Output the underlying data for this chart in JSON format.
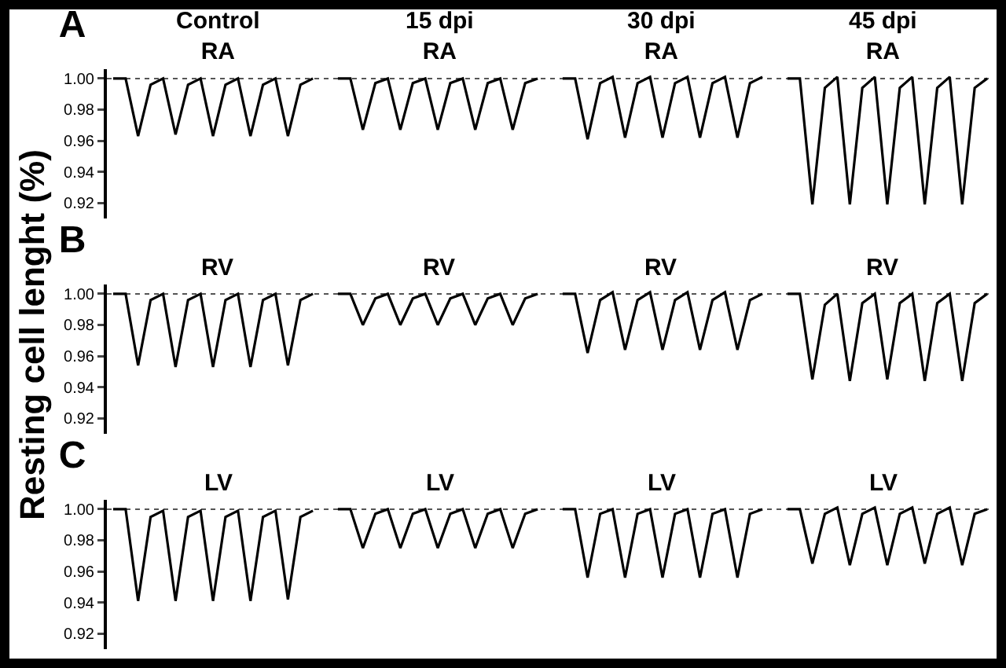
{
  "chart_data": [
    {
      "type": "line",
      "title": "A",
      "annotations": [
        "Control\nRA",
        "15 dpi\nRA",
        "30 dpi\nRA",
        "45 dpi\nRA"
      ],
      "categories": [
        null,
        null,
        null,
        null,
        null,
        null,
        null,
        null,
        null,
        null,
        null,
        null,
        null,
        null,
        null,
        null,
        null,
        null,
        null,
        null,
        null,
        null,
        null,
        null,
        null,
        null,
        null,
        null,
        null,
        null,
        null,
        null,
        null,
        null,
        null,
        null,
        null,
        null,
        null,
        null,
        null,
        null,
        null,
        null,
        null,
        null,
        null,
        null,
        null,
        null,
        null,
        null,
        null,
        null,
        null,
        null,
        null,
        null,
        null,
        null,
        null,
        null,
        null,
        null,
        null,
        null,
        null,
        null,
        null,
        null,
        null
      ],
      "series": [
        {
          "color": "#000000",
          "values": [
            1.0,
            1.0,
            0.963,
            0.996,
            1.0,
            0.964,
            0.996,
            1.0,
            0.963,
            0.996,
            1.0,
            0.963,
            0.996,
            1.0,
            0.963,
            0.996,
            1.0,
            null,
            1.0,
            1.0,
            0.967,
            0.997,
            1.0,
            0.967,
            0.997,
            1.0,
            0.967,
            0.997,
            1.0,
            0.967,
            0.997,
            1.0,
            0.967,
            0.997,
            1.0,
            null,
            1.0,
            1.0,
            0.961,
            0.997,
            1.001,
            0.962,
            0.997,
            1.001,
            0.962,
            0.997,
            1.001,
            0.962,
            0.997,
            1.001,
            0.962,
            0.997,
            1.001,
            null,
            1.0,
            1.0,
            0.919,
            0.994,
            1.001,
            0.919,
            0.994,
            1.001,
            0.919,
            0.994,
            1.001,
            0.919,
            0.994,
            1.001,
            0.919,
            0.994,
            1.0
          ]
        }
      ],
      "ylim": [
        0.91,
        1.006
      ],
      "yticks": [
        {
          "value": 0.92,
          "label": "0.92"
        },
        {
          "value": 0.94,
          "label": "0.94"
        },
        {
          "value": 0.96,
          "label": "0.96"
        },
        {
          "value": 0.98,
          "label": "0.98"
        },
        {
          "value": 1.0,
          "label": "1.00"
        }
      ],
      "tick_labels": "y",
      "grid": false,
      "line_style": "solid",
      "marker": "none",
      "ref_lines": [
        {
          "axis": "y",
          "value": 1.0,
          "color": "#555555",
          "line_style": "dotted"
        }
      ]
    },
    {
      "type": "line",
      "title": "B",
      "ylabel": "Resting cell lenght (%)",
      "annotations": [
        "RV",
        "RV",
        "RV",
        "RV"
      ],
      "categories": [
        null,
        null,
        null,
        null,
        null,
        null,
        null,
        null,
        null,
        null,
        null,
        null,
        null,
        null,
        null,
        null,
        null,
        null,
        null,
        null,
        null,
        null,
        null,
        null,
        null,
        null,
        null,
        null,
        null,
        null,
        null,
        null,
        null,
        null,
        null,
        null,
        null,
        null,
        null,
        null,
        null,
        null,
        null,
        null,
        null,
        null,
        null,
        null,
        null,
        null,
        null,
        null,
        null,
        null,
        null,
        null,
        null,
        null,
        null,
        null,
        null,
        null,
        null,
        null,
        null,
        null,
        null,
        null,
        null,
        null,
        null
      ],
      "series": [
        {
          "color": "#000000",
          "values": [
            1.0,
            1.0,
            0.954,
            0.996,
            1.0,
            0.953,
            0.996,
            1.0,
            0.953,
            0.996,
            1.0,
            0.953,
            0.996,
            1.0,
            0.954,
            0.996,
            1.0,
            null,
            1.0,
            1.0,
            0.98,
            0.997,
            1.0,
            0.98,
            0.997,
            1.0,
            0.98,
            0.997,
            1.0,
            0.98,
            0.997,
            1.0,
            0.98,
            0.997,
            1.0,
            null,
            1.0,
            1.0,
            0.962,
            0.996,
            1.001,
            0.964,
            0.996,
            1.001,
            0.964,
            0.996,
            1.001,
            0.964,
            0.996,
            1.001,
            0.964,
            0.996,
            1.0,
            null,
            1.0,
            1.0,
            0.945,
            0.993,
            1.0,
            0.944,
            0.994,
            1.0,
            0.945,
            0.994,
            1.0,
            0.944,
            0.994,
            1.0,
            0.944,
            0.994,
            1.0
          ]
        }
      ],
      "ylim": [
        0.91,
        1.006
      ],
      "yticks": [
        {
          "value": 0.92,
          "label": "0.92"
        },
        {
          "value": 0.94,
          "label": "0.94"
        },
        {
          "value": 0.96,
          "label": "0.96"
        },
        {
          "value": 0.98,
          "label": "0.98"
        },
        {
          "value": 1.0,
          "label": "1.00"
        }
      ],
      "tick_labels": "y",
      "grid": false,
      "line_style": "solid",
      "marker": "none",
      "ref_lines": [
        {
          "axis": "y",
          "value": 1.0,
          "color": "#555555",
          "line_style": "dotted"
        }
      ]
    },
    {
      "type": "line",
      "title": "C",
      "annotations": [
        "LV",
        "LV",
        "LV",
        "LV"
      ],
      "categories": [
        null,
        null,
        null,
        null,
        null,
        null,
        null,
        null,
        null,
        null,
        null,
        null,
        null,
        null,
        null,
        null,
        null,
        null,
        null,
        null,
        null,
        null,
        null,
        null,
        null,
        null,
        null,
        null,
        null,
        null,
        null,
        null,
        null,
        null,
        null,
        null,
        null,
        null,
        null,
        null,
        null,
        null,
        null,
        null,
        null,
        null,
        null,
        null,
        null,
        null,
        null,
        null,
        null,
        null,
        null,
        null,
        null,
        null,
        null,
        null,
        null,
        null,
        null,
        null,
        null,
        null,
        null,
        null,
        null,
        null,
        null
      ],
      "series": [
        {
          "color": "#000000",
          "values": [
            1.0,
            1.0,
            0.941,
            0.995,
            0.999,
            0.941,
            0.995,
            0.999,
            0.941,
            0.995,
            0.999,
            0.941,
            0.995,
            0.999,
            0.942,
            0.995,
            0.999,
            null,
            1.0,
            1.0,
            0.975,
            0.997,
            1.0,
            0.975,
            0.997,
            1.0,
            0.975,
            0.997,
            1.0,
            0.975,
            0.997,
            1.0,
            0.975,
            0.997,
            1.0,
            null,
            1.0,
            1.0,
            0.956,
            0.997,
            1.0,
            0.956,
            0.997,
            1.0,
            0.956,
            0.997,
            1.0,
            0.956,
            0.997,
            1.0,
            0.956,
            0.997,
            1.0,
            null,
            1.0,
            1.0,
            0.965,
            0.997,
            1.001,
            0.964,
            0.997,
            1.001,
            0.964,
            0.997,
            1.001,
            0.965,
            0.997,
            1.001,
            0.964,
            0.997,
            1.0
          ]
        }
      ],
      "ylim": [
        0.91,
        1.006
      ],
      "yticks": [
        {
          "value": 0.92,
          "label": "0.92"
        },
        {
          "value": 0.94,
          "label": "0.94"
        },
        {
          "value": 0.96,
          "label": "0.96"
        },
        {
          "value": 0.98,
          "label": "0.98"
        },
        {
          "value": 1.0,
          "label": "1.00"
        }
      ],
      "tick_labels": "y",
      "grid": false,
      "line_style": "solid",
      "marker": "none",
      "ref_lines": [
        {
          "axis": "y",
          "value": 1.0,
          "color": "#555555",
          "line_style": "dotted"
        }
      ]
    }
  ]
}
